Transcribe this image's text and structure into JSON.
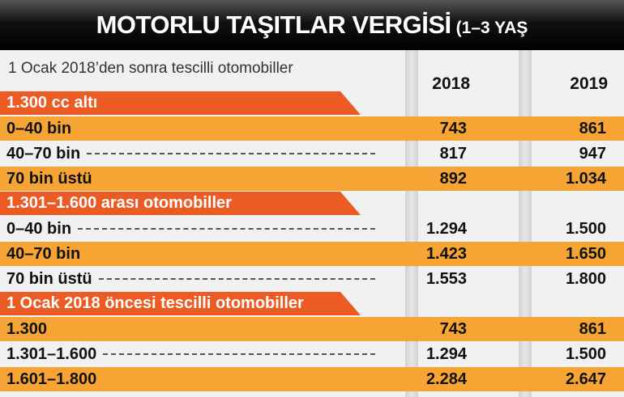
{
  "header": {
    "title": "MOTORLU TAŞITLAR VERGİSİ",
    "title_note": "(1–3 YAŞ"
  },
  "table": {
    "subtitle": "1 Ocak 2018’den sonra tescilli otomobiller",
    "columns": [
      "2018",
      "2019"
    ],
    "sections": [
      {
        "title": "1.300 cc altı",
        "rows": [
          [
            "0–40 bin",
            "743",
            "861"
          ],
          [
            "40–70 bin",
            "817",
            "947"
          ],
          [
            "70 bin üstü",
            "892",
            "1.034"
          ]
        ]
      },
      {
        "title": "1.301–1.600 arası otomobiller",
        "rows": [
          [
            "0–40 bin",
            "1.294",
            "1.500"
          ],
          [
            "40–70 bin",
            "1.423",
            "1.650"
          ],
          [
            "70 bin üstü",
            "1.553",
            "1.800"
          ]
        ]
      },
      {
        "title": "1 Ocak 2018 öncesi tescilli otomobiller",
        "rows": [
          [
            "1.300",
            "743",
            "861"
          ],
          [
            "1.301–1.600",
            "1.294",
            "1.500"
          ],
          [
            "1.601–1.800",
            "2.284",
            "2.647"
          ]
        ]
      }
    ]
  }
}
